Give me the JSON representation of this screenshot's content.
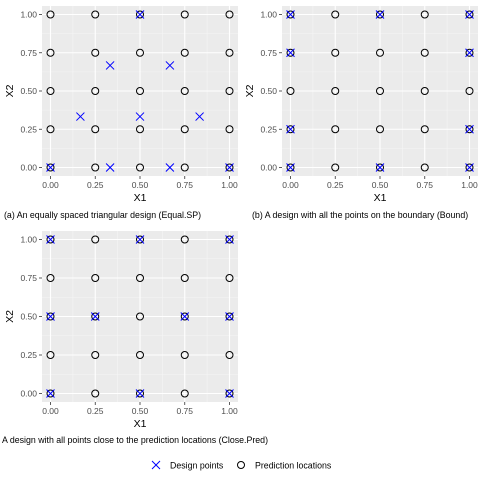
{
  "legend": {
    "design_label": "Design points",
    "pred_label": "Prediction locations"
  },
  "chart_data": [
    {
      "type": "scatter",
      "caption": "(a) An equally spaced triangular design (Equal.SP)",
      "xlabel": "X1",
      "ylabel": "X2",
      "xlim": [
        0,
        1
      ],
      "ylim": [
        0,
        1
      ],
      "xticks": [
        "0.00",
        "0.25",
        "0.50",
        "0.75",
        "1.00"
      ],
      "yticks": [
        "0.00",
        "0.25",
        "0.50",
        "0.75",
        "1.00"
      ],
      "series": [
        {
          "name": "Design points",
          "points": [
            [
              0,
              0
            ],
            [
              0.333,
              0
            ],
            [
              0.667,
              0
            ],
            [
              1,
              0
            ],
            [
              0.167,
              0.333
            ],
            [
              0.5,
              0.333
            ],
            [
              0.833,
              0.333
            ],
            [
              0.333,
              0.667
            ],
            [
              0.667,
              0.667
            ],
            [
              0.5,
              1
            ]
          ]
        },
        {
          "name": "Prediction locations",
          "grid": [
            0,
            0.25,
            0.5,
            0.75,
            1
          ]
        }
      ]
    },
    {
      "type": "scatter",
      "caption": "(b) A design with all the points on the boundary (Bound)",
      "xlabel": "X1",
      "ylabel": "X2",
      "xlim": [
        0,
        1
      ],
      "ylim": [
        0,
        1
      ],
      "xticks": [
        "0.00",
        "0.25",
        "0.50",
        "0.75",
        "1.00"
      ],
      "yticks": [
        "0.00",
        "0.25",
        "0.50",
        "0.75",
        "1.00"
      ],
      "series": [
        {
          "name": "Design points",
          "points": [
            [
              0,
              0
            ],
            [
              0.5,
              0
            ],
            [
              1,
              0
            ],
            [
              0,
              0.25
            ],
            [
              1,
              0.25
            ],
            [
              0,
              0.75
            ],
            [
              1,
              0.75
            ],
            [
              0,
              1
            ],
            [
              0.5,
              1
            ],
            [
              1,
              1
            ]
          ]
        },
        {
          "name": "Prediction locations",
          "grid": [
            0,
            0.25,
            0.5,
            0.75,
            1
          ]
        }
      ]
    },
    {
      "type": "scatter",
      "caption": "A design with all points close to the prediction locations (Close.Pred)",
      "xlabel": "X1",
      "ylabel": "X2",
      "xlim": [
        0,
        1
      ],
      "ylim": [
        0,
        1
      ],
      "xticks": [
        "0.00",
        "0.25",
        "0.50",
        "0.75",
        "1.00"
      ],
      "yticks": [
        "0.00",
        "0.25",
        "0.50",
        "0.75",
        "1.00"
      ],
      "series": [
        {
          "name": "Design points",
          "points": [
            [
              0,
              0
            ],
            [
              0.5,
              0
            ],
            [
              1,
              0
            ],
            [
              0,
              0.5
            ],
            [
              0.25,
              0.5
            ],
            [
              0.75,
              0.5
            ],
            [
              1,
              0.5
            ],
            [
              0,
              1
            ],
            [
              0.5,
              1
            ],
            [
              1,
              1
            ]
          ]
        },
        {
          "name": "Prediction locations",
          "grid": [
            0,
            0.25,
            0.5,
            0.75,
            1
          ]
        }
      ]
    }
  ]
}
